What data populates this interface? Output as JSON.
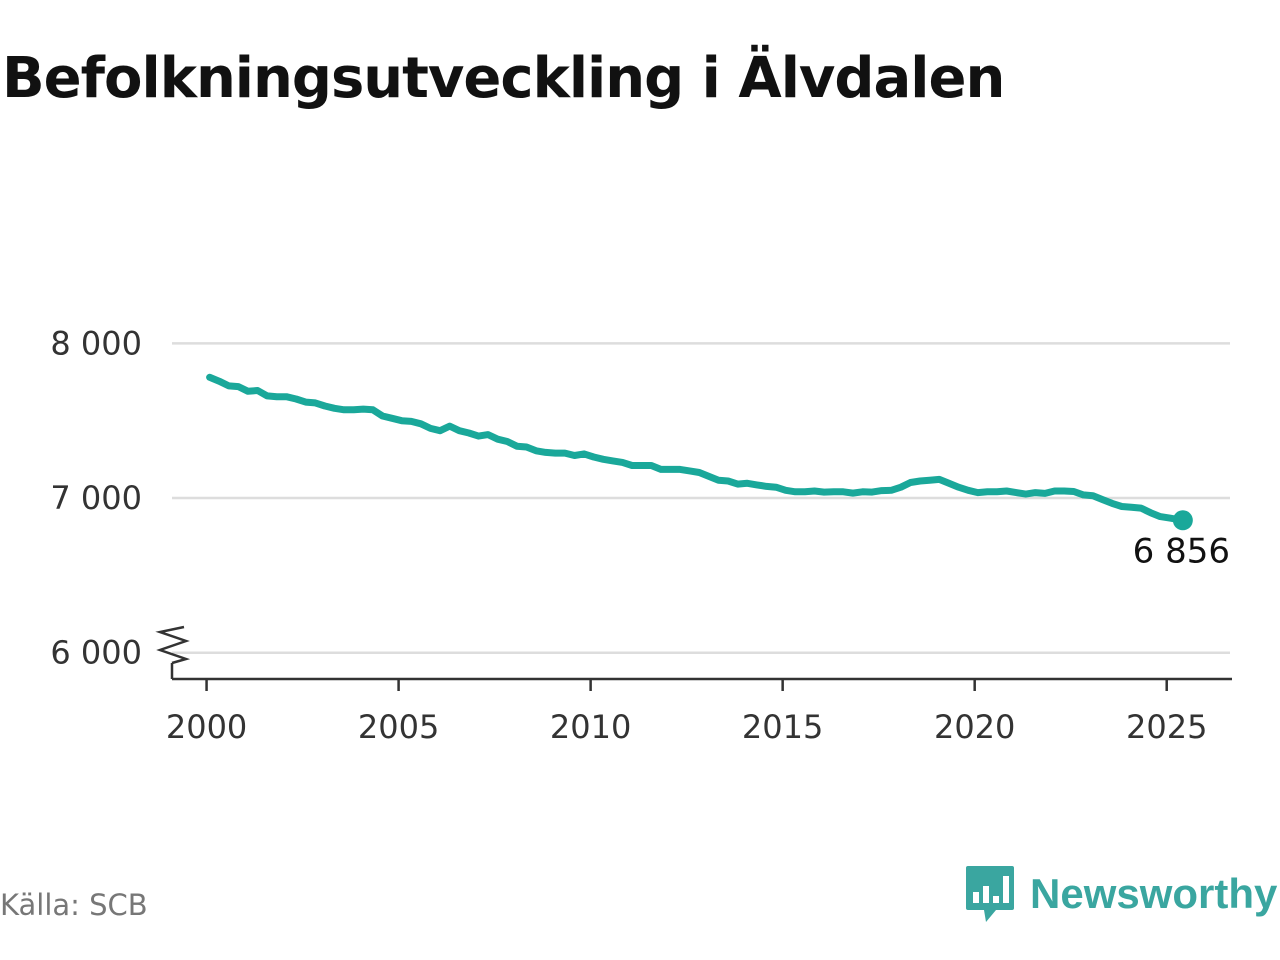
{
  "title": "Befolkningsutveckling i Älvdalen",
  "source": "Källa: SCB",
  "brand": {
    "name": "Newsworthy",
    "logo_icon": "bar-chart-speech-bubble-icon"
  },
  "colors": {
    "line": "#1aa89a",
    "grid": "#dddddd",
    "axis": "#333333",
    "brand": "#3aa6a0"
  },
  "chart_data": {
    "type": "line",
    "title": "Befolkningsutveckling i Älvdalen",
    "xlabel": "",
    "ylabel": "",
    "xlim": [
      1999.1,
      2026.7
    ],
    "ylim": [
      5830,
      8280
    ],
    "y_axis_break": true,
    "grid": "horizontal",
    "x_ticks": [
      2000,
      2005,
      2010,
      2015,
      2020,
      2025
    ],
    "y_ticks": [
      {
        "value": 6000,
        "label": "6 000"
      },
      {
        "value": 7000,
        "label": "7 000"
      },
      {
        "value": 8000,
        "label": "8 000"
      }
    ],
    "end_label": "6 856",
    "series": [
      {
        "x": [
          2000.08,
          2000.33,
          2000.58,
          2000.83,
          2001.08,
          2001.33,
          2001.58,
          2001.83,
          2002.08,
          2002.33,
          2002.58,
          2002.83,
          2003.08,
          2003.33,
          2003.58,
          2003.83,
          2004.08,
          2004.33,
          2004.58,
          2004.83,
          2005.08,
          2005.33,
          2005.58,
          2005.83,
          2006.08,
          2006.33,
          2006.58,
          2006.83,
          2007.08,
          2007.33,
          2007.58,
          2007.83,
          2008.08,
          2008.33,
          2008.58,
          2008.83,
          2009.08,
          2009.33,
          2009.58,
          2009.83,
          2010.08,
          2010.33,
          2010.58,
          2010.83,
          2011.08,
          2011.33,
          2011.58,
          2011.83,
          2012.08,
          2012.33,
          2012.58,
          2012.83,
          2013.08,
          2013.33,
          2013.58,
          2013.83,
          2014.08,
          2014.33,
          2014.58,
          2014.83,
          2015.08,
          2015.33,
          2015.58,
          2015.83,
          2016.08,
          2016.33,
          2016.58,
          2016.83,
          2017.08,
          2017.33,
          2017.58,
          2017.83,
          2018.08,
          2018.33,
          2018.58,
          2018.83,
          2019.08,
          2019.33,
          2019.58,
          2019.83,
          2020.08,
          2020.33,
          2020.58,
          2020.83,
          2021.08,
          2021.33,
          2021.58,
          2021.83,
          2022.08,
          2022.33,
          2022.58,
          2022.83,
          2023.08,
          2023.33,
          2023.58,
          2023.83,
          2024.08,
          2024.33,
          2024.58,
          2024.83,
          2025.08,
          2025.42
        ],
        "values": [
          7780,
          7755,
          7725,
          7720,
          7690,
          7695,
          7660,
          7655,
          7655,
          7640,
          7620,
          7615,
          7595,
          7580,
          7570,
          7570,
          7575,
          7570,
          7530,
          7515,
          7500,
          7495,
          7480,
          7450,
          7435,
          7465,
          7435,
          7420,
          7400,
          7410,
          7380,
          7365,
          7335,
          7330,
          7305,
          7295,
          7290,
          7290,
          7275,
          7285,
          7265,
          7250,
          7240,
          7230,
          7210,
          7210,
          7210,
          7185,
          7185,
          7185,
          7175,
          7165,
          7140,
          7115,
          7110,
          7090,
          7095,
          7085,
          7075,
          7070,
          7050,
          7040,
          7040,
          7045,
          7038,
          7040,
          7040,
          7032,
          7040,
          7038,
          7048,
          7050,
          7070,
          7100,
          7110,
          7115,
          7120,
          7095,
          7070,
          7050,
          7035,
          7040,
          7040,
          7045,
          7035,
          7025,
          7035,
          7030,
          7045,
          7045,
          7042,
          7020,
          7015,
          6990,
          6965,
          6945,
          6940,
          6935,
          6905,
          6880,
          6870,
          6856
        ]
      }
    ]
  }
}
